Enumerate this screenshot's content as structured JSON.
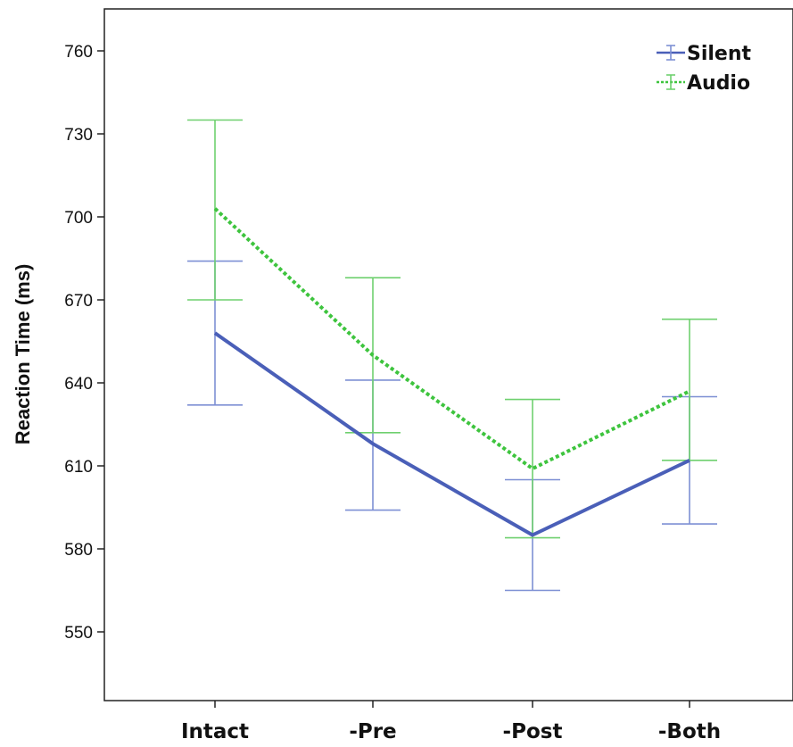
{
  "chart_data": {
    "type": "line",
    "title": "",
    "xlabel": "",
    "ylabel": "Reaction Time (ms)",
    "categories": [
      "Intact",
      "-Pre",
      "-Post",
      "-Both"
    ],
    "y_ticks": [
      550,
      580,
      610,
      640,
      670,
      700,
      730,
      760
    ],
    "ylim": [
      525,
      775
    ],
    "grid": false,
    "legend_position": "top-right",
    "error_bars": true,
    "series": [
      {
        "name": "Silent",
        "color": "#4a5fb8",
        "errorbar_color": "#7d8fd4",
        "line_style": "solid",
        "values": [
          658,
          618,
          585,
          612
        ],
        "lower": [
          632,
          594,
          565,
          589
        ],
        "upper": [
          684,
          641,
          605,
          635
        ]
      },
      {
        "name": "Audio",
        "color": "#3ec43e",
        "errorbar_color": "#6fd06f",
        "line_style": "dotted",
        "values": [
          703,
          650,
          609,
          637
        ],
        "lower": [
          670,
          622,
          584,
          612
        ],
        "upper": [
          735,
          678,
          634,
          663
        ]
      }
    ]
  }
}
